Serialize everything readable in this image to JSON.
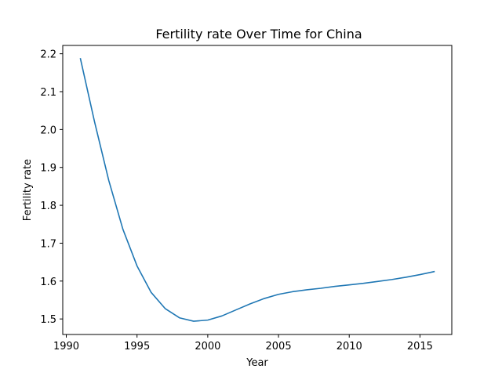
{
  "chart_data": {
    "type": "line",
    "title": "Fertility rate Over Time for China",
    "xlabel": "Year",
    "ylabel": "Fertility rate",
    "xlim": [
      1989.75,
      2017.25
    ],
    "ylim": [
      1.459,
      2.222
    ],
    "xticks": [
      1990,
      1995,
      2000,
      2005,
      2010,
      2015
    ],
    "yticks": [
      1.5,
      1.6,
      1.7,
      1.8,
      1.9,
      2.0,
      2.1,
      2.2
    ],
    "xtick_labels": [
      "1990",
      "1995",
      "2000",
      "2005",
      "2010",
      "2015"
    ],
    "ytick_labels": [
      "1.5",
      "1.6",
      "1.7",
      "1.8",
      "1.9",
      "2.0",
      "2.1",
      "2.2"
    ],
    "grid": false,
    "series": [
      {
        "color": "#1f77b4",
        "x": [
          1991,
          1992,
          1993,
          1994,
          1995,
          1996,
          1997,
          1998,
          1999,
          2000,
          2001,
          2002,
          2003,
          2004,
          2005,
          2006,
          2007,
          2008,
          2009,
          2010,
          2011,
          2012,
          2013,
          2014,
          2015,
          2016
        ],
        "y": [
          2.187,
          2.02,
          1.866,
          1.737,
          1.64,
          1.57,
          1.527,
          1.503,
          1.494,
          1.497,
          1.508,
          1.524,
          1.54,
          1.554,
          1.565,
          1.572,
          1.577,
          1.581,
          1.586,
          1.59,
          1.594,
          1.599,
          1.604,
          1.61,
          1.617,
          1.625
        ]
      }
    ]
  }
}
